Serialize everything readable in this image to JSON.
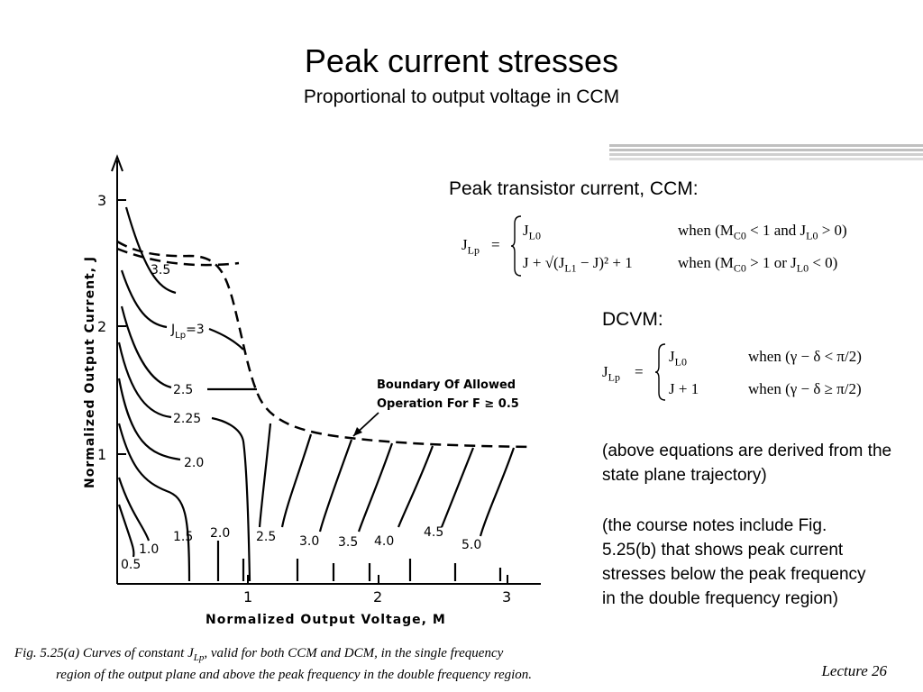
{
  "slide": {
    "title": "Peak current stresses",
    "subtitle": "Proportional to output voltage in CCM",
    "ccm_label": "Peak transistor current, CCM:",
    "dcvm_label": "DCVM:",
    "note1": "(above equations are derived from the state plane trajectory)",
    "note2": "(the course notes include Fig. 5.25(b) that shows peak current stresses below the peak frequency in the double frequency region)",
    "caption_line1": "Fig. 5.25(a)     Curves of constant J",
    "caption_sub": "Lp",
    "caption_line1_rest": ", valid for both CCM and DCM, in the single frequency",
    "caption_line2": "region of the output plane and above the peak frequency in the double frequency region.",
    "footer": "Lecture 26",
    "accent_bars": [
      "#c0c0c0",
      "#c0c0c0",
      "#cfcfcf",
      "#dcdcdc"
    ]
  },
  "eq_ccm": {
    "lhs": "J",
    "lhs_sub": "Lp",
    "eq": "=",
    "case1_expr": "J",
    "case1_sub": "L0",
    "case1_cond": "when (M",
    "case1_cond_sub": "C0",
    "case1_cond_mid": " < 1  and  J",
    "case1_cond_sub2": "L0",
    "case1_cond_end": " > 0)",
    "case2_expr": "J + √(J",
    "case2_sub": "L1",
    "case2_expr_end": " − J)² + 1",
    "case2_cond": "when (M",
    "case2_cond_sub": "C0",
    "case2_cond_mid": " > 1  or  J",
    "case2_cond_sub2": "L0",
    "case2_cond_end": " < 0)"
  },
  "eq_dcvm": {
    "lhs": "J",
    "lhs_sub": "Lp",
    "eq": "=",
    "case1_expr": "J",
    "case1_sub": "L0",
    "case1_cond": "when (γ − δ < π/2)",
    "case2_expr": "J + 1",
    "case2_cond": "when (γ − δ ≥ π/2)"
  },
  "figure": {
    "y_axis_label": "Normalized Output Current, J",
    "x_axis_label": "Normalized Output Voltage, M",
    "y_ticks": [
      "1",
      "2",
      "3"
    ],
    "x_ticks": [
      "1",
      "2",
      "3"
    ],
    "boundary_label_line1": "Boundary Of Allowed",
    "boundary_label_line2": "Operation For F ≥ 0.5",
    "curve_labels": [
      "3.5",
      "J",
      "Lp",
      "=3",
      "2.5",
      "2.25",
      "2.0",
      "1.5",
      "1.0",
      "0.5",
      "2.0",
      "2.5",
      "3.0",
      "3.5",
      "4.0",
      "4.5",
      "5.0"
    ]
  }
}
